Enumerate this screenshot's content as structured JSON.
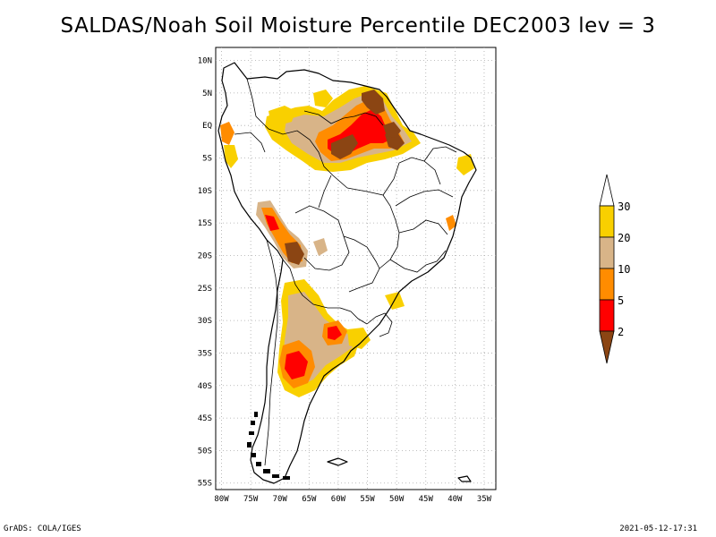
{
  "title": "SALDAS/Noah Soil Moisture Percentile DEC2003 lev = 3",
  "footer": {
    "left": "GrADS: COLA/IGES",
    "right": "2021-05-12-17:31"
  },
  "axes": {
    "lon_labels": [
      "80W",
      "75W",
      "70W",
      "65W",
      "60W",
      "55W",
      "50W",
      "45W",
      "40W",
      "35W"
    ],
    "lon_values": [
      -80,
      -75,
      -70,
      -65,
      -60,
      -55,
      -50,
      -45,
      -40,
      -35
    ],
    "lat_labels": [
      "10N",
      "5N",
      "EQ",
      "5S",
      "10S",
      "15S",
      "20S",
      "25S",
      "30S",
      "35S",
      "40S",
      "45S",
      "50S",
      "55S"
    ],
    "lat_values": [
      10,
      5,
      0,
      -5,
      -10,
      -15,
      -20,
      -25,
      -30,
      -35,
      -40,
      -45,
      -50,
      -55
    ],
    "lon_range": [
      -81,
      -33
    ],
    "lat_range": [
      12,
      -56
    ]
  },
  "legend": {
    "labels": [
      "30",
      "20",
      "10",
      "5",
      "2"
    ],
    "colors": {
      "above": "#ffffff",
      "c20_30": "#f9d000",
      "c10_20": "#d8b488",
      "c5_10": "#ff8c00",
      "c2_5": "#ff0000",
      "below2": "#8b4513"
    }
  },
  "grid": "on"
}
